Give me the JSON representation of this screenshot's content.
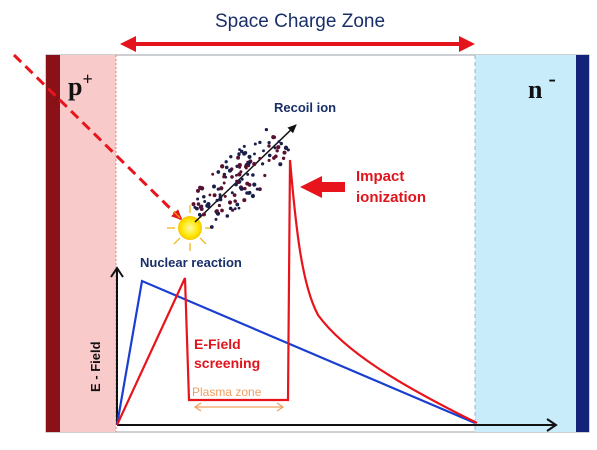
{
  "title": "Space Charge Zone",
  "labels": {
    "p_region": "p",
    "p_superscript": "+",
    "n_region": "n",
    "n_superscript": "-",
    "recoil_ion": "Recoil ion",
    "impact_ionization_line1": "Impact",
    "impact_ionization_line2": "ionization",
    "nuclear_reaction": "Nuclear reaction",
    "efield_screening_line1": "E-Field",
    "efield_screening_line2": "screening",
    "plasma_zone": "Plasma zone",
    "y_axis": "E - Field"
  },
  "colors": {
    "p_region": "#f8caca",
    "p_contact": "#8b1118",
    "n_region": "#c8ecfa",
    "n_contact": "#13237a",
    "title_arrow": "#e3141c",
    "red_curve": "#e8141c",
    "blue_curve": "#1a3fd0",
    "text_dark": "#1a2f6a",
    "text_red": "#e0141c",
    "plasma": "#f0a060",
    "sun": "#ffe600"
  }
}
